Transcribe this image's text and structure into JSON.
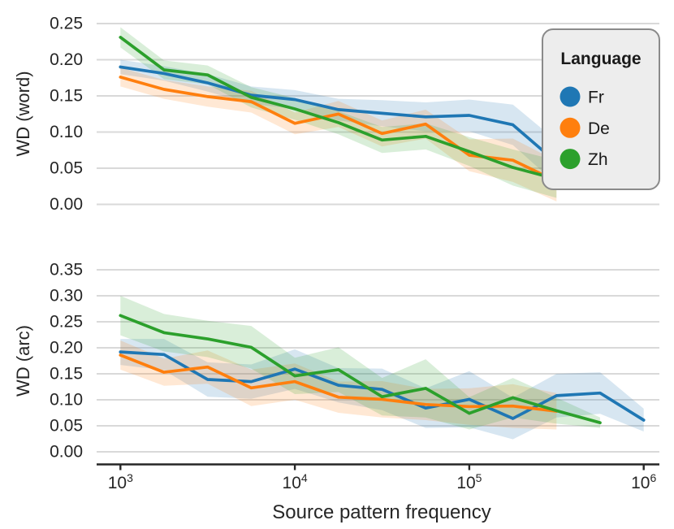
{
  "chart_data": {
    "type": "line",
    "title": "",
    "xlabel": "Source pattern frequency",
    "x_scale": "log10",
    "xlim": [
      700,
      1200000
    ],
    "grid": true,
    "band_opacity": 0.18,
    "x_ticks": [
      {
        "f": 1000,
        "base": "10",
        "exp": "3"
      },
      {
        "f": 10000,
        "base": "10",
        "exp": "4"
      },
      {
        "f": 100000,
        "base": "10",
        "exp": "5"
      },
      {
        "f": 1000000,
        "base": "10",
        "exp": "6"
      }
    ],
    "legend": {
      "title": "Language",
      "position": "upper right",
      "entries": [
        {
          "label": "Fr",
          "color": "#1f77b4"
        },
        {
          "label": "De",
          "color": "#ff7f0e"
        },
        {
          "label": "Zh",
          "color": "#2ca02c"
        }
      ]
    },
    "panels": [
      {
        "ylabel": "WD (word)",
        "ylim": [
          0,
          0.25
        ],
        "yticks": [
          {
            "v": 0.0,
            "label": "0.00"
          },
          {
            "v": 0.05,
            "label": "0.05"
          },
          {
            "v": 0.1,
            "label": "0.10"
          },
          {
            "v": 0.15,
            "label": "0.15"
          },
          {
            "v": 0.2,
            "label": "0.20"
          },
          {
            "v": 0.25,
            "label": "0.25"
          }
        ],
        "series": [
          {
            "name": "Fr",
            "color": "#1f77b4",
            "x": [
              1000,
              1778,
              3162,
              5623,
              10000,
              17783,
              31623,
              56234,
              100000,
              177828,
              316228
            ],
            "y": [
              0.19,
              0.181,
              0.168,
              0.151,
              0.145,
              0.131,
              0.126,
              0.121,
              0.123,
              0.11,
              0.058
            ],
            "lo": [
              0.18,
              0.171,
              0.156,
              0.139,
              0.132,
              0.116,
              0.108,
              0.101,
              0.101,
              0.082,
              0.028
            ],
            "hi": [
              0.2,
              0.191,
              0.18,
              0.163,
              0.158,
              0.146,
              0.144,
              0.141,
              0.145,
              0.138,
              0.088
            ]
          },
          {
            "name": "De",
            "color": "#ff7f0e",
            "x": [
              1000,
              1778,
              3162,
              5623,
              10000,
              17783,
              31623,
              56234,
              100000,
              177828,
              316228
            ],
            "y": [
              0.176,
              0.159,
              0.149,
              0.142,
              0.112,
              0.125,
              0.098,
              0.111,
              0.068,
              0.061,
              0.032
            ],
            "lo": [
              0.163,
              0.146,
              0.135,
              0.127,
              0.097,
              0.107,
              0.08,
              0.091,
              0.046,
              0.031,
              0.004
            ],
            "hi": [
              0.189,
              0.172,
              0.163,
              0.157,
              0.127,
              0.143,
              0.116,
              0.131,
              0.09,
              0.091,
              0.06
            ]
          },
          {
            "name": "Zh",
            "color": "#2ca02c",
            "x": [
              1000,
              1778,
              3162,
              5623,
              10000,
              17783,
              31623,
              56234,
              100000,
              177828,
              316228
            ],
            "y": [
              0.231,
              0.186,
              0.179,
              0.148,
              0.132,
              0.113,
              0.089,
              0.094,
              0.073,
              0.051,
              0.035
            ],
            "lo": [
              0.217,
              0.173,
              0.166,
              0.134,
              0.117,
              0.097,
              0.071,
              0.076,
              0.053,
              0.026,
              0.009
            ],
            "hi": [
              0.245,
              0.199,
              0.192,
              0.162,
              0.147,
              0.129,
              0.107,
              0.112,
              0.093,
              0.076,
              0.061
            ]
          }
        ]
      },
      {
        "ylabel": "WD (arc)",
        "ylim": [
          0,
          0.35
        ],
        "yticks": [
          {
            "v": 0.0,
            "label": "0.00"
          },
          {
            "v": 0.05,
            "label": "0.05"
          },
          {
            "v": 0.1,
            "label": "0.10"
          },
          {
            "v": 0.15,
            "label": "0.15"
          },
          {
            "v": 0.2,
            "label": "0.20"
          },
          {
            "v": 0.25,
            "label": "0.25"
          },
          {
            "v": 0.3,
            "label": "0.30"
          },
          {
            "v": 0.35,
            "label": "0.35"
          }
        ],
        "series": [
          {
            "name": "Fr",
            "color": "#1f77b4",
            "x": [
              1000,
              1778,
              3162,
              5623,
              10000,
              17783,
              31623,
              56234,
              100000,
              177828,
              316228,
              562341,
              1000000
            ],
            "y": [
              0.192,
              0.187,
              0.139,
              0.135,
              0.159,
              0.128,
              0.12,
              0.084,
              0.101,
              0.064,
              0.108,
              0.113,
              0.061
            ],
            "lo": [
              0.167,
              0.157,
              0.106,
              0.102,
              0.121,
              0.095,
              0.08,
              0.046,
              0.047,
              0.024,
              0.066,
              0.073,
              0.039
            ],
            "hi": [
              0.217,
              0.217,
              0.172,
              0.168,
              0.197,
              0.161,
              0.16,
              0.122,
              0.155,
              0.104,
              0.15,
              0.153,
              0.083
            ]
          },
          {
            "name": "De",
            "color": "#ff7f0e",
            "x": [
              1000,
              1778,
              3162,
              5623,
              10000,
              17783,
              31623,
              56234,
              100000,
              177828,
              316228
            ],
            "y": [
              0.186,
              0.153,
              0.163,
              0.123,
              0.135,
              0.105,
              0.101,
              0.091,
              0.087,
              0.088,
              0.078
            ],
            "lo": [
              0.158,
              0.127,
              0.131,
              0.088,
              0.1,
              0.075,
              0.066,
              0.061,
              0.052,
              0.046,
              0.043
            ],
            "hi": [
              0.214,
              0.179,
              0.195,
              0.158,
              0.17,
              0.135,
              0.136,
              0.121,
              0.122,
              0.13,
              0.113
            ]
          },
          {
            "name": "Zh",
            "color": "#2ca02c",
            "x": [
              1000,
              1778,
              3162,
              5623,
              10000,
              17783,
              31623,
              56234,
              100000,
              177828,
              316228,
              562341
            ],
            "y": [
              0.262,
              0.229,
              0.217,
              0.201,
              0.146,
              0.158,
              0.106,
              0.122,
              0.074,
              0.104,
              0.079,
              0.056
            ],
            "lo": [
              0.224,
              0.193,
              0.182,
              0.16,
              0.111,
              0.115,
              0.07,
              0.066,
              0.043,
              0.066,
              0.054,
              0.046
            ],
            "hi": [
              0.3,
              0.265,
              0.252,
              0.242,
              0.181,
              0.201,
              0.142,
              0.178,
              0.105,
              0.142,
              0.104,
              0.066
            ]
          }
        ]
      }
    ]
  }
}
